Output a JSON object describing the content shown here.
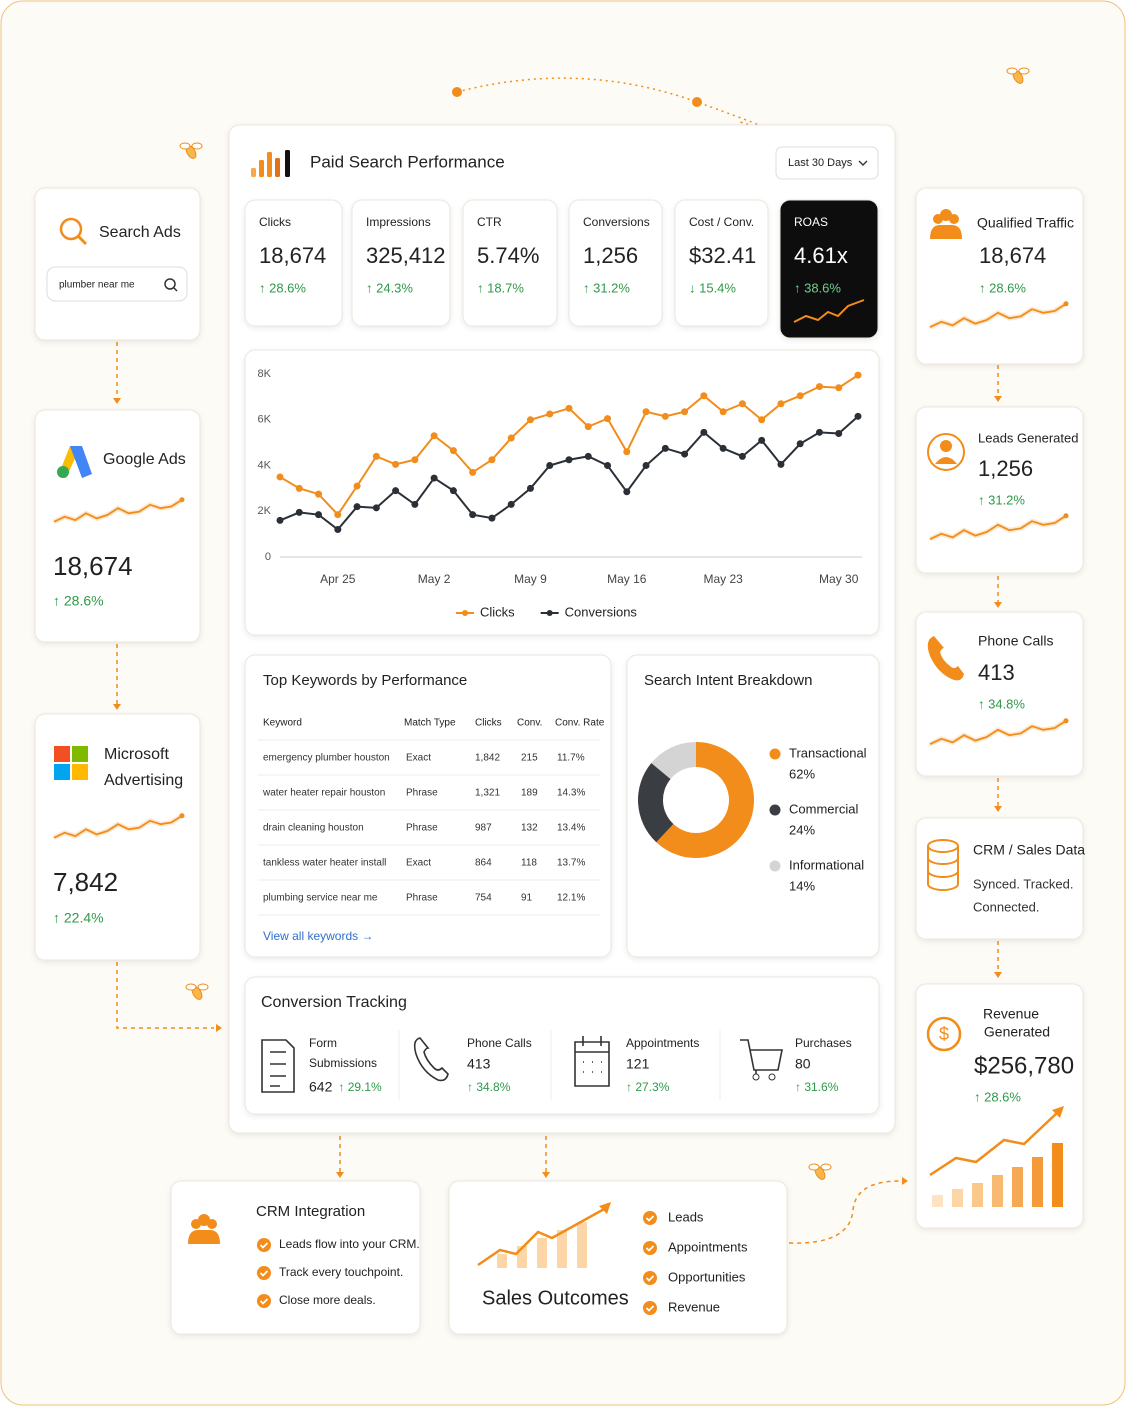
{
  "search_ads": {
    "title": "Search Ads",
    "query": "plumber near me"
  },
  "google_ads": {
    "title": "Google Ads",
    "value": "18,674",
    "change": "↑ 28.6%"
  },
  "microsoft_ads": {
    "title": [
      "Microsoft",
      "Advertising"
    ],
    "value": "7,842",
    "change": "↑ 22.4%"
  },
  "dashboard": {
    "title": "Paid Search Performance",
    "range": "Last 30 Days",
    "kpis": [
      {
        "label": "Clicks",
        "value": "18,674",
        "change": "↑ 28.6%"
      },
      {
        "label": "Impressions",
        "value": "325,412",
        "change": "↑ 24.3%"
      },
      {
        "label": "CTR",
        "value": "5.74%",
        "change": "↑ 18.7%"
      },
      {
        "label": "Conversions",
        "value": "1,256",
        "change": "↑ 31.2%"
      },
      {
        "label": "Cost / Conv.",
        "value": "$32.41",
        "change": "↓ 15.4%"
      },
      {
        "label": "ROAS",
        "value": "4.61x",
        "change": "↑ 38.6%"
      }
    ]
  },
  "trend_chart": {
    "type": "line",
    "categories": [
      null,
      null,
      null,
      "Apr 25",
      null,
      null,
      null,
      null,
      "May 2",
      null,
      null,
      null,
      null,
      "May 9",
      null,
      null,
      null,
      null,
      "May 16",
      null,
      null,
      null,
      null,
      "May 23",
      null,
      null,
      null,
      null,
      null,
      "May 30",
      null
    ],
    "ylim": [
      0,
      8000
    ],
    "yticks": [
      0,
      {
        "value": 2000,
        "label": "2K"
      },
      {
        "value": 4000,
        "label": "4K"
      },
      {
        "value": 6000,
        "label": "6K"
      },
      {
        "value": 8000,
        "label": "8K"
      }
    ],
    "legend": "bottom",
    "series": [
      {
        "name": "Clicks",
        "color": "#f28c1a",
        "values": [
          3500,
          3000,
          2750,
          1850,
          3100,
          4400,
          4050,
          4250,
          5300,
          4650,
          3700,
          4250,
          5200,
          6000,
          6250,
          6500,
          5700,
          6050,
          4600,
          6350,
          6150,
          6350,
          7050,
          6350,
          6700,
          6000,
          6700,
          7050,
          7450,
          7400,
          7950
        ]
      },
      {
        "name": "Conversions",
        "color": "#2b2f36",
        "values": [
          1600,
          1950,
          1850,
          1200,
          2200,
          2150,
          2900,
          2300,
          3450,
          2900,
          1850,
          1700,
          2300,
          3000,
          4000,
          4250,
          4400,
          4000,
          2850,
          4000,
          4750,
          4500,
          5450,
          4750,
          4400,
          5100,
          4050,
          4950,
          5450,
          5400,
          6150
        ]
      }
    ]
  },
  "keywords": {
    "title": "Top Keywords by Performance",
    "columns": [
      "Keyword",
      "Match Type",
      "Clicks",
      "Conv.",
      "Conv. Rate"
    ],
    "rows": [
      [
        "emergency plumber houston",
        "Exact",
        "1,842",
        "215",
        "11.7%"
      ],
      [
        "water heater repair houston",
        "Phrase",
        "1,321",
        "189",
        "14.3%"
      ],
      [
        "drain cleaning houston",
        "Phrase",
        "987",
        "132",
        "13.4%"
      ],
      [
        "tankless water heater install",
        "Exact",
        "864",
        "118",
        "13.7%"
      ],
      [
        "plumbing service near me",
        "Phrase",
        "754",
        "91",
        "12.1%"
      ]
    ],
    "link": "View all keywords →"
  },
  "intent": {
    "type": "pie",
    "title": "Search Intent Breakdown",
    "categories": [
      "Transactional",
      "Commercial",
      "Informational"
    ],
    "values": [
      62,
      24,
      14
    ],
    "value_labels": [
      "62%",
      "24%",
      "14%"
    ],
    "colors": [
      "#f28c1a",
      "#3a3d42",
      "#d4d4d4"
    ]
  },
  "conversion_tracking": {
    "title": "Conversion Tracking",
    "items": [
      {
        "label": [
          "Form",
          "Submissions"
        ],
        "value": "642",
        "change": "↑ 29.1%"
      },
      {
        "label": [
          "Phone Calls"
        ],
        "value": "413",
        "change": "↑ 34.8%"
      },
      {
        "label": [
          "Appointments"
        ],
        "value": "121",
        "change": "↑ 27.3%"
      },
      {
        "label": [
          "Purchases"
        ],
        "value": "80",
        "change": "↑ 31.6%"
      }
    ]
  },
  "qualified_traffic": {
    "title": "Qualified Traffic",
    "value": "18,674",
    "change": "↑ 28.6%"
  },
  "leads": {
    "title": "Leads Generated",
    "value": "1,256",
    "change": "↑ 31.2%"
  },
  "phone_calls": {
    "title": "Phone Calls",
    "value": "413",
    "change": "↑ 34.8%"
  },
  "crm_sales": {
    "title": "CRM / Sales Data",
    "text": [
      "Synced. Tracked.",
      "Connected."
    ]
  },
  "revenue": {
    "title": [
      "Revenue",
      "Generated"
    ],
    "value": "$256,780",
    "change": "↑ 28.6%"
  },
  "crm_integration": {
    "title": "CRM Integration",
    "items": [
      "Leads flow into your CRM.",
      "Track every touchpoint.",
      "Close more deals."
    ]
  },
  "sales_outcomes": {
    "title": "Sales Outcomes",
    "items": [
      "Leads",
      "Appointments",
      "Opportunities",
      "Revenue"
    ]
  }
}
